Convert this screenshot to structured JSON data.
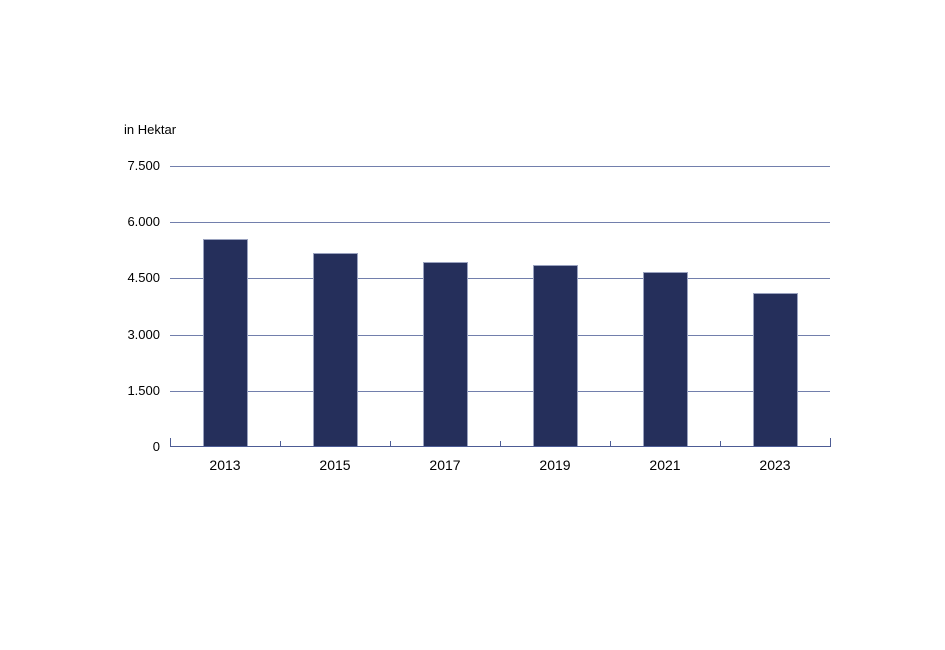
{
  "chart_data": {
    "type": "bar",
    "title": "",
    "unit_label": "in Hektar",
    "categories": [
      "2013",
      "2015",
      "2017",
      "2019",
      "2021",
      "2023"
    ],
    "values": [
      5520,
      5150,
      4900,
      4820,
      4650,
      4090
    ],
    "xlabel": "",
    "ylabel": "in Hektar",
    "ylim": [
      0,
      7500
    ],
    "yticks": [
      0,
      1500,
      3000,
      4500,
      6000,
      7500
    ],
    "ytick_labels": [
      "0",
      "1.500",
      "3.000",
      "4.500",
      "6.000",
      "7.500"
    ],
    "grid": true,
    "legend_position": "none",
    "colors": {
      "bar_fill": "#252F5B",
      "bar_border": "#9AA2BF",
      "gridline": "#727FAC",
      "axis": "#4D5C95",
      "text": "#000000",
      "background": "#ffffff"
    }
  }
}
